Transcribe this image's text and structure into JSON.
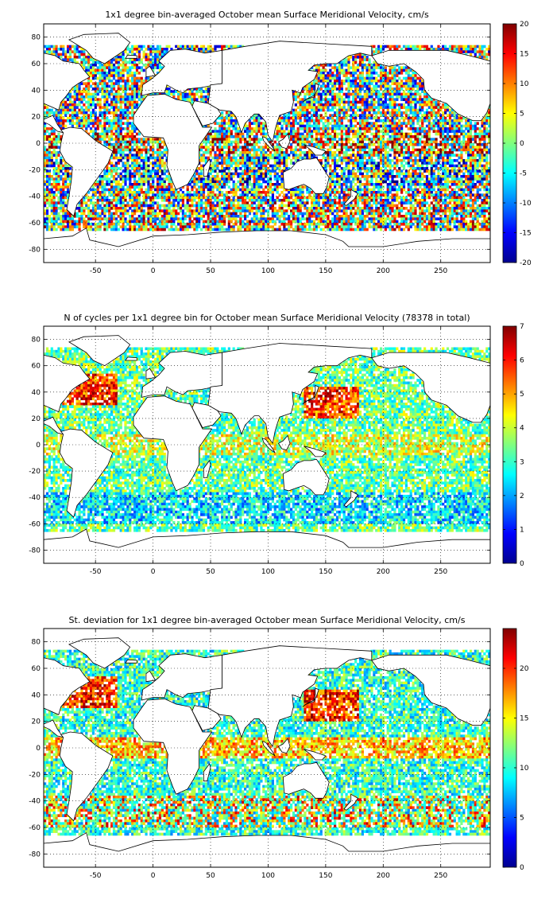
{
  "chart_data": [
    {
      "type": "heatmap",
      "title": "1x1 degree bin-averaged October mean Surface Meridional Velocity, cm/s",
      "xlabel": "",
      "ylabel": "",
      "xlim": [
        -95,
        293
      ],
      "ylim": [
        -90,
        90
      ],
      "xticks": [
        -50,
        0,
        50,
        100,
        150,
        200,
        250
      ],
      "yticks": [
        80,
        60,
        40,
        20,
        0,
        -20,
        -40,
        -60,
        -80
      ],
      "xtick_labels": [
        "-50",
        "0",
        "50",
        "100",
        "150",
        "200",
        "250"
      ],
      "ytick_labels": [
        "80",
        "60",
        "40",
        "20",
        "0",
        "-20",
        "-40",
        "-60",
        "-80"
      ],
      "grid": "dotted",
      "colormap": "jet",
      "clim": [
        -20,
        20
      ],
      "colorbar_ticks": [
        20,
        15,
        10,
        5,
        0,
        -5,
        -10,
        -15,
        -20
      ],
      "colorbar_labels": [
        "20",
        "15",
        "10",
        "5",
        "0",
        "-5",
        "-10",
        "-15",
        "-20"
      ],
      "coverage": "global ocean 1x1 degree bins, roughly 65S to 75N"
    },
    {
      "type": "heatmap",
      "title": "N of cycles per 1x1 degree bin for October mean Surface Meridional Velocity (78378 in total)",
      "xlabel": "",
      "ylabel": "",
      "xlim": [
        -95,
        293
      ],
      "ylim": [
        -90,
        90
      ],
      "xticks": [
        -50,
        0,
        50,
        100,
        150,
        200,
        250
      ],
      "yticks": [
        80,
        60,
        40,
        20,
        0,
        -20,
        -40,
        -60,
        -80
      ],
      "xtick_labels": [
        "-50",
        "0",
        "50",
        "100",
        "150",
        "200",
        "250"
      ],
      "ytick_labels": [
        "80",
        "60",
        "40",
        "20",
        "0",
        "-20",
        "-40",
        "-60",
        "-80"
      ],
      "grid": "dotted",
      "colormap": "jet",
      "clim": [
        0,
        7
      ],
      "colorbar_ticks": [
        7,
        6,
        5,
        4,
        3,
        2,
        1,
        0
      ],
      "colorbar_labels": [
        "7",
        "6",
        "5",
        "4",
        "3",
        "2",
        "1",
        "0"
      ],
      "coverage": "global ocean 1x1 degree bins, roughly 65S to 75N"
    },
    {
      "type": "heatmap",
      "title": "St. deviation for 1x1 degree bin-averaged October mean Surface Meridional Velocity, cm/s",
      "xlabel": "",
      "ylabel": "",
      "xlim": [
        -95,
        293
      ],
      "ylim": [
        -90,
        90
      ],
      "xticks": [
        -50,
        0,
        50,
        100,
        150,
        200,
        250
      ],
      "yticks": [
        80,
        60,
        40,
        20,
        0,
        -20,
        -40,
        -60,
        -80
      ],
      "xtick_labels": [
        "-50",
        "0",
        "50",
        "100",
        "150",
        "200",
        "250"
      ],
      "ytick_labels": [
        "80",
        "60",
        "40",
        "20",
        "0",
        "-20",
        "-40",
        "-60",
        "-80"
      ],
      "grid": "dotted",
      "colormap": "jet",
      "clim": [
        0,
        24
      ],
      "colorbar_ticks": [
        20,
        15,
        10,
        5,
        0
      ],
      "colorbar_labels": [
        "20",
        "15",
        "10",
        "5",
        "0"
      ],
      "coverage": "global ocean 1x1 degree bins, roughly 65S to 75N"
    }
  ]
}
